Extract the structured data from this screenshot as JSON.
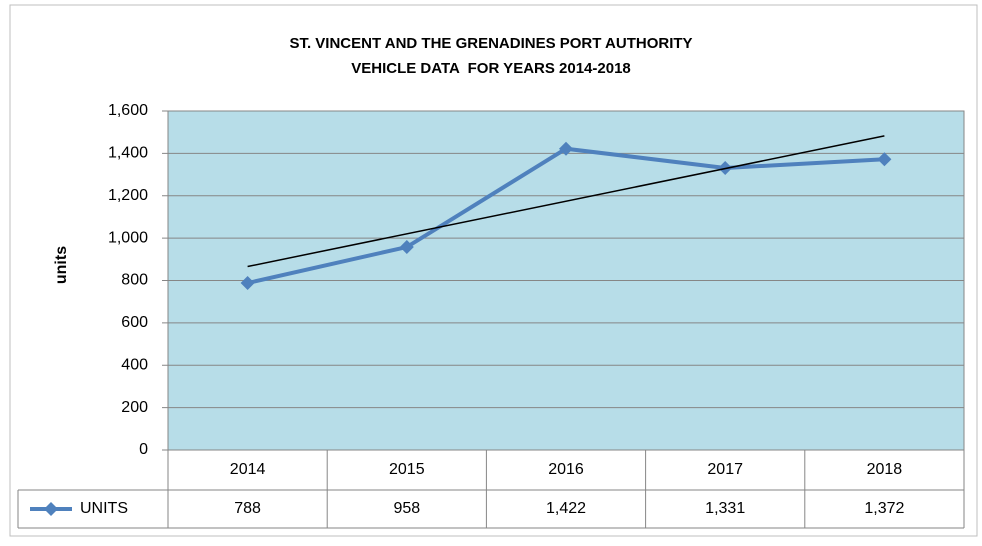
{
  "chart_data": {
    "type": "line",
    "title": [
      "ST. VINCENT AND THE GRENADINES PORT AUTHORITY",
      "VEHICLE DATA  FOR YEARS 2014-2018"
    ],
    "y_label": "units",
    "categories": [
      "2014",
      "2015",
      "2016",
      "2017",
      "2018"
    ],
    "series": [
      {
        "name": "UNITS",
        "color": "#4f81bd",
        "values": [
          788,
          958,
          1422,
          1331,
          1372
        ],
        "value_labels": [
          "788",
          "958",
          "1,422",
          "1,331",
          "1,372"
        ]
      }
    ],
    "ylim": [
      0,
      1600
    ],
    "yticks": [
      0,
      200,
      400,
      600,
      800,
      {
        "value": 1000,
        "label": "1,000"
      },
      {
        "value": 1200,
        "label": "1,200"
      },
      {
        "value": 1400,
        "label": "1,400"
      },
      {
        "value": 1600,
        "label": "1,600"
      }
    ],
    "grid": true,
    "plot_background": "#b7dde8",
    "trendline": "linear",
    "data_table": true
  }
}
